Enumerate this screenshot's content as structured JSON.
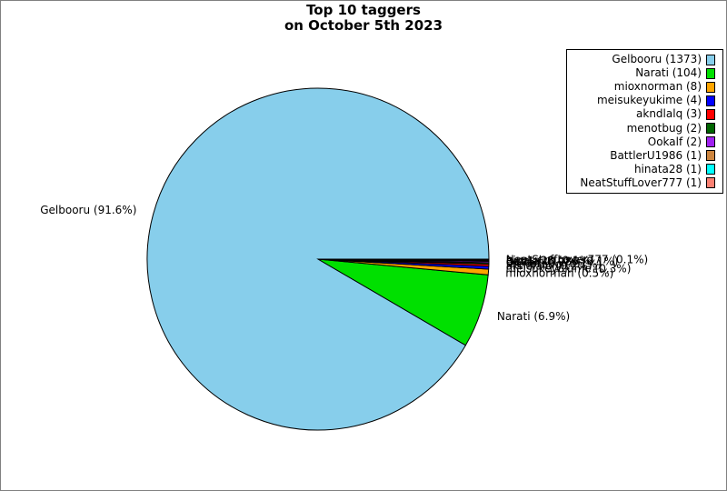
{
  "figure": {
    "title_line1": "Top 10 taggers",
    "title_line2": "on October 5th 2023",
    "background_color": "#ffffff",
    "border_color": "#808080"
  },
  "chart_data": {
    "type": "pie",
    "title": "Top 10 taggers on October 5th 2023",
    "total": 1499,
    "start_angle_deg": 0,
    "direction": "counterclockwise",
    "edge_color": "#000000",
    "legend_position": "upper right",
    "legend_marker_side": "right",
    "slices": [
      {
        "name": "Gelbooru",
        "count": 1373,
        "pct_label": "91.6%",
        "label": "Gelbooru (91.6%)",
        "legend_label": "Gelbooru (1373)",
        "color": "#87CEEB"
      },
      {
        "name": "Narati",
        "count": 104,
        "pct_label": "6.9%",
        "label": "Narati (6.9%)",
        "legend_label": "Narati (104)",
        "color": "#00E000"
      },
      {
        "name": "mioxnorman",
        "count": 8,
        "pct_label": "0.5%",
        "label": "mioxnorman (0.5%)",
        "legend_label": "mioxnorman (8)",
        "color": "#FFA500"
      },
      {
        "name": "meisukeyukime",
        "count": 4,
        "pct_label": "0.3%",
        "label": "meisukeyukime (0.3%)",
        "legend_label": "meisukeyukime (4)",
        "color": "#0000FF"
      },
      {
        "name": "akndlalq",
        "count": 3,
        "pct_label": "0.2%",
        "label": "akndlalq (0.2%)",
        "legend_label": "akndlalq (3)",
        "color": "#FF0000"
      },
      {
        "name": "menotbug",
        "count": 2,
        "pct_label": "0.1%",
        "label": "menotbug (0.1%)",
        "legend_label": "menotbug (2)",
        "color": "#006400"
      },
      {
        "name": "Ookalf",
        "count": 2,
        "pct_label": "0.1%",
        "label": "Ookalf (0.1%)",
        "legend_label": "Ookalf (2)",
        "color": "#A020F0"
      },
      {
        "name": "BattlerU1986",
        "count": 1,
        "pct_label": "0.1%",
        "label": "BattlerU1986 (0.1%)",
        "legend_label": "BattlerU1986 (1)",
        "color": "#CD853F"
      },
      {
        "name": "hinata28",
        "count": 1,
        "pct_label": "0.1%",
        "label": "hinata28 (0.1%)",
        "legend_label": "hinata28 (1)",
        "color": "#00FFFF"
      },
      {
        "name": "NeatStuffLover777",
        "count": 1,
        "pct_label": "0.1%",
        "label": "NeatStuffLover777 (0.1%)",
        "legend_label": "NeatStuffLover777 (1)",
        "color": "#FA8072"
      }
    ]
  }
}
